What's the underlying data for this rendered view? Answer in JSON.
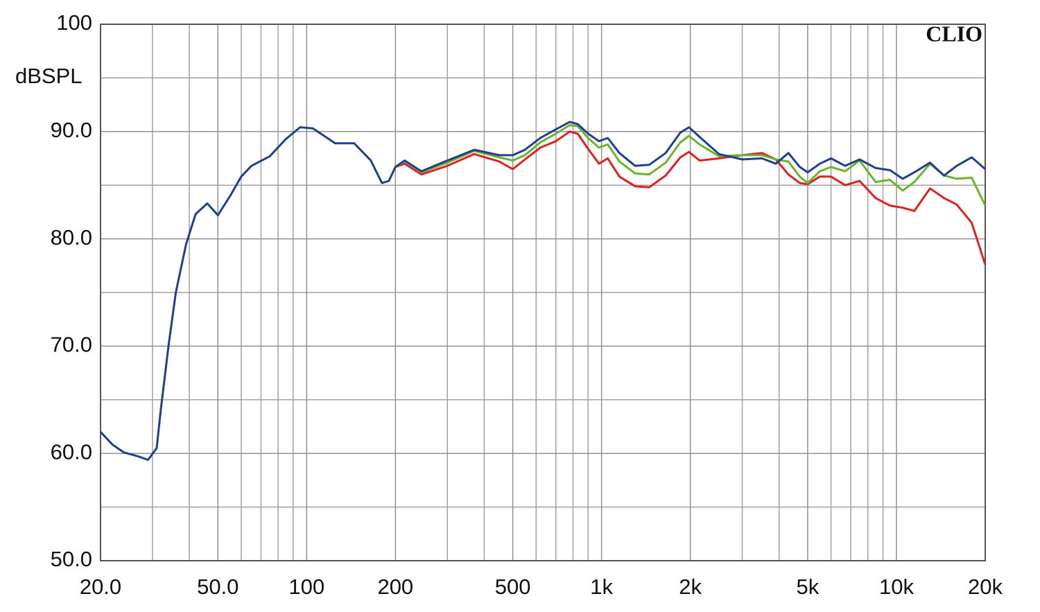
{
  "chart_data": {
    "type": "line",
    "y_label": "dBSPL",
    "watermark": "CLIO",
    "xscale": "log",
    "grid": true,
    "xlim": [
      20,
      20000
    ],
    "ylim": [
      50,
      100
    ],
    "xticks": [
      {
        "value": 20,
        "label": "20.0"
      },
      {
        "value": 50,
        "label": "50.0"
      },
      100,
      200,
      500,
      {
        "value": 1000,
        "label": "1k"
      },
      {
        "value": 2000,
        "label": "2k"
      },
      {
        "value": 5000,
        "label": "5k"
      },
      {
        "value": 10000,
        "label": "10k"
      },
      {
        "value": 20000,
        "label": "20k"
      }
    ],
    "xminorticks": [
      30,
      40,
      60,
      70,
      80,
      90,
      300,
      400,
      600,
      700,
      800,
      900,
      3000,
      4000,
      6000,
      7000,
      8000,
      9000
    ],
    "yticks": [
      {
        "value": 50,
        "label": "50.0"
      },
      {
        "value": 60,
        "label": "60.0"
      },
      {
        "value": 70,
        "label": "70.0"
      },
      {
        "value": 80,
        "label": "80.0"
      },
      {
        "value": 90,
        "label": "90.0"
      },
      100
    ],
    "yminorticks": [
      55,
      65,
      75,
      85,
      95
    ],
    "series": [
      {
        "color": "#e02020",
        "x": [
          200,
          215,
          245,
          300,
          370,
          450,
          500,
          550,
          620,
          700,
          780,
          830,
          900,
          980,
          1050,
          1150,
          1300,
          1450,
          1650,
          1850,
          1980,
          2150,
          2500,
          3000,
          3500,
          3900,
          4300,
          4700,
          5000,
          5500,
          6000,
          6700,
          7500,
          8500,
          9500,
          10500,
          11500,
          13000,
          14500,
          16000,
          18000,
          20000
        ],
        "values": [
          86.7,
          87.0,
          86.0,
          86.8,
          87.9,
          87.2,
          86.5,
          87.4,
          88.5,
          89.1,
          90.0,
          89.8,
          88.4,
          87.0,
          87.5,
          85.8,
          84.9,
          84.8,
          85.9,
          87.6,
          88.1,
          87.3,
          87.5,
          87.8,
          88.0,
          87.4,
          86.0,
          85.2,
          85.1,
          85.8,
          85.8,
          85.0,
          85.4,
          83.8,
          83.1,
          82.9,
          82.6,
          84.7,
          83.8,
          83.2,
          81.5,
          77.6
        ]
      },
      {
        "color": "#6ab42a",
        "x": [
          200,
          215,
          245,
          300,
          370,
          450,
          500,
          550,
          620,
          700,
          780,
          830,
          900,
          980,
          1050,
          1150,
          1300,
          1450,
          1650,
          1850,
          1980,
          2150,
          2500,
          3000,
          3500,
          3900,
          4300,
          4700,
          5000,
          5500,
          6000,
          6700,
          7500,
          8500,
          9500,
          10500,
          11500,
          13000,
          14500,
          16000,
          18000,
          20000
        ],
        "values": [
          86.7,
          87.2,
          86.2,
          87.1,
          88.2,
          87.6,
          87.3,
          87.8,
          89.0,
          89.8,
          90.6,
          90.5,
          89.4,
          88.5,
          88.8,
          87.2,
          86.1,
          86.0,
          87.1,
          89.0,
          89.6,
          88.8,
          87.7,
          87.8,
          87.8,
          87.4,
          87.2,
          85.8,
          85.2,
          86.3,
          86.7,
          86.3,
          87.3,
          85.3,
          85.5,
          84.5,
          85.3,
          87.0,
          85.9,
          85.6,
          85.7,
          83.1
        ]
      },
      {
        "color": "#1f3f8f",
        "x": [
          20,
          22,
          24,
          27,
          29,
          31,
          32,
          34,
          36,
          39,
          42,
          46,
          50,
          55,
          60,
          65,
          75,
          85,
          95,
          105,
          125,
          145,
          165,
          180,
          190,
          200,
          215,
          245,
          300,
          370,
          450,
          500,
          550,
          620,
          700,
          780,
          830,
          900,
          980,
          1050,
          1150,
          1300,
          1450,
          1650,
          1850,
          1980,
          2150,
          2500,
          3000,
          3500,
          3900,
          4300,
          4700,
          5000,
          5500,
          6000,
          6700,
          7500,
          8500,
          9500,
          10500,
          11500,
          13000,
          14500,
          16000,
          18000,
          20000
        ],
        "values": [
          62.0,
          60.8,
          60.1,
          59.7,
          59.4,
          60.5,
          64.0,
          70.0,
          75.0,
          79.5,
          82.3,
          83.3,
          82.2,
          84.0,
          85.8,
          86.8,
          87.7,
          89.3,
          90.4,
          90.3,
          88.9,
          88.9,
          87.3,
          85.2,
          85.4,
          86.7,
          87.3,
          86.3,
          87.3,
          88.3,
          87.8,
          87.8,
          88.3,
          89.4,
          90.2,
          90.9,
          90.7,
          89.8,
          89.1,
          89.4,
          88.0,
          86.8,
          86.9,
          88.0,
          89.9,
          90.4,
          89.5,
          87.9,
          87.4,
          87.5,
          87.0,
          88.0,
          86.7,
          86.2,
          87.0,
          87.5,
          86.8,
          87.4,
          86.6,
          86.4,
          85.6,
          86.2,
          87.1,
          85.9,
          86.8,
          87.6,
          86.5
        ]
      }
    ]
  }
}
